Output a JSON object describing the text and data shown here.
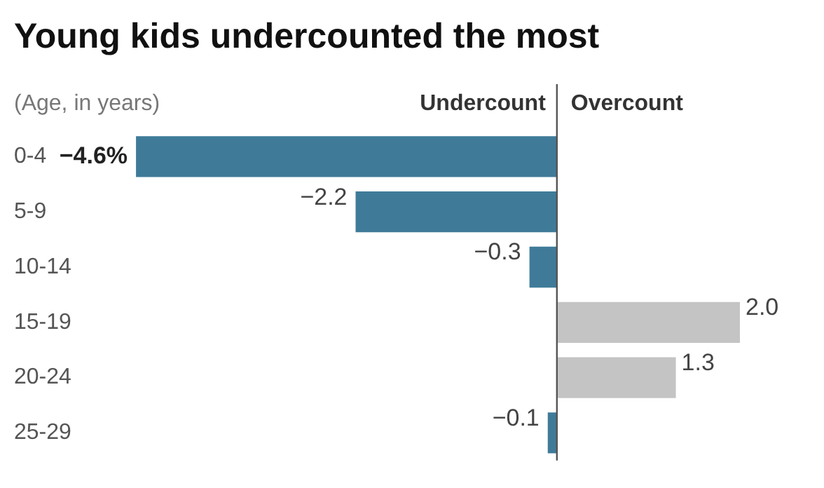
{
  "chart_data": {
    "type": "bar",
    "orientation": "horizontal",
    "title": "Young kids undercounted the most",
    "categories": [
      "0-4",
      "5-9",
      "10-14",
      "15-19",
      "20-24",
      "25-29"
    ],
    "values": [
      -4.6,
      -2.2,
      -0.3,
      2.0,
      1.3,
      -0.1
    ],
    "colors": [
      "#3f7b99",
      "#3f7b99",
      "#3f7b99",
      "#c4c4c4",
      "#c4c4c4",
      "#3f7b99"
    ],
    "value_labels": [
      "−4.6%",
      "−2.2",
      "−0.3",
      "2.0",
      "1.3",
      "−0.1"
    ],
    "annotations": [
      "(Age, in years)",
      "Undercount",
      "Overcount"
    ],
    "grid": false,
    "legend": false
  }
}
